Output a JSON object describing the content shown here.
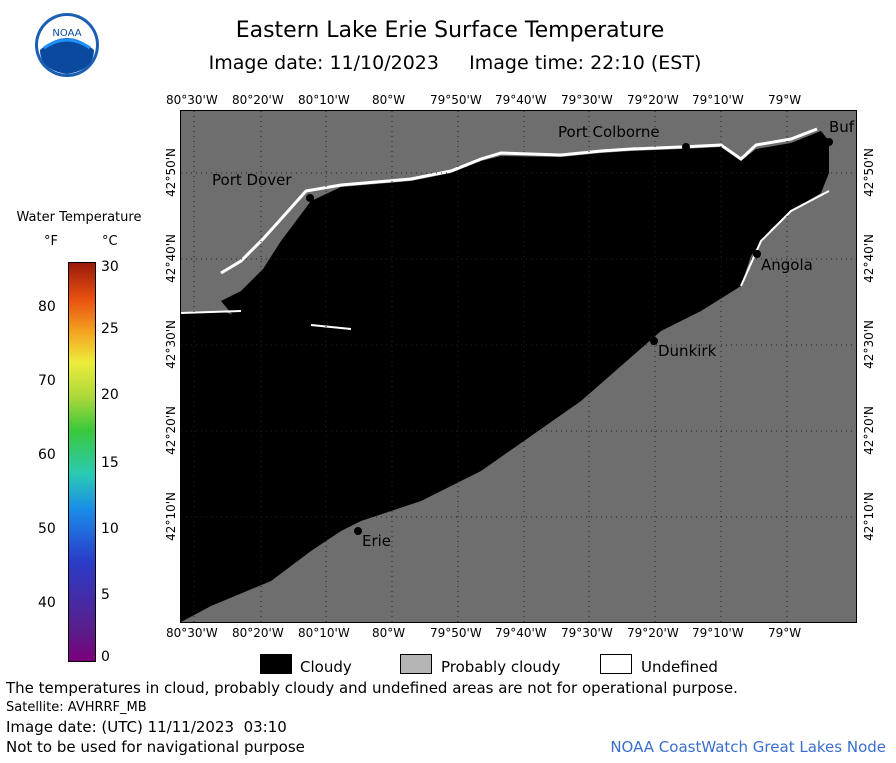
{
  "header": {
    "title": "Eastern Lake Erie Surface Temperature",
    "image_date_label": "Image date: 11/10/2023",
    "image_time_label": "Image time: 22:10 (EST)"
  },
  "logo": {
    "text": "NOAA",
    "icon": "noaa-logo-icon"
  },
  "legend": {
    "title": "Water Temperature",
    "unit_f": "°F",
    "unit_c": "°C",
    "f_ticks": [
      "80",
      "70",
      "60",
      "50",
      "40"
    ],
    "c_ticks": [
      "30",
      "25",
      "20",
      "15",
      "10",
      "5",
      "0"
    ]
  },
  "map": {
    "lon_labels": [
      "80°30'W",
      "80°20'W",
      "80°10'W",
      "80°W",
      "79°50'W",
      "79°40'W",
      "79°30'W",
      "79°20'W",
      "79°10'W",
      "79°W"
    ],
    "lat_labels": [
      "42°50'N",
      "42°40'N",
      "42°30'N",
      "42°20'N",
      "42°10'N"
    ],
    "cities": {
      "port_dover": "Port Dover",
      "port_colborne": "Port Colborne",
      "buffalo": "Buf",
      "angola": "Angola",
      "dunkirk": "Dunkirk",
      "erie": "Erie"
    },
    "colors": {
      "cloudy": "#000000",
      "probably_cloudy": "#6e6e6e",
      "undefined": "#ffffff"
    }
  },
  "key": {
    "cloudy": "Cloudy",
    "probably_cloudy": "Probably cloudy",
    "undefined": "Undefined"
  },
  "footer": {
    "disclaimer": "The temperatures in cloud, probably cloudy and undefined areas are not for operational purpose.",
    "satellite": "Satellite: AVHRRF_MB",
    "utc_date": "Image date: (UTC) 11/11/2023  03:10",
    "nav_warning": "Not to be used for navigational purpose",
    "node": "NOAA CoastWatch Great Lakes Node"
  }
}
